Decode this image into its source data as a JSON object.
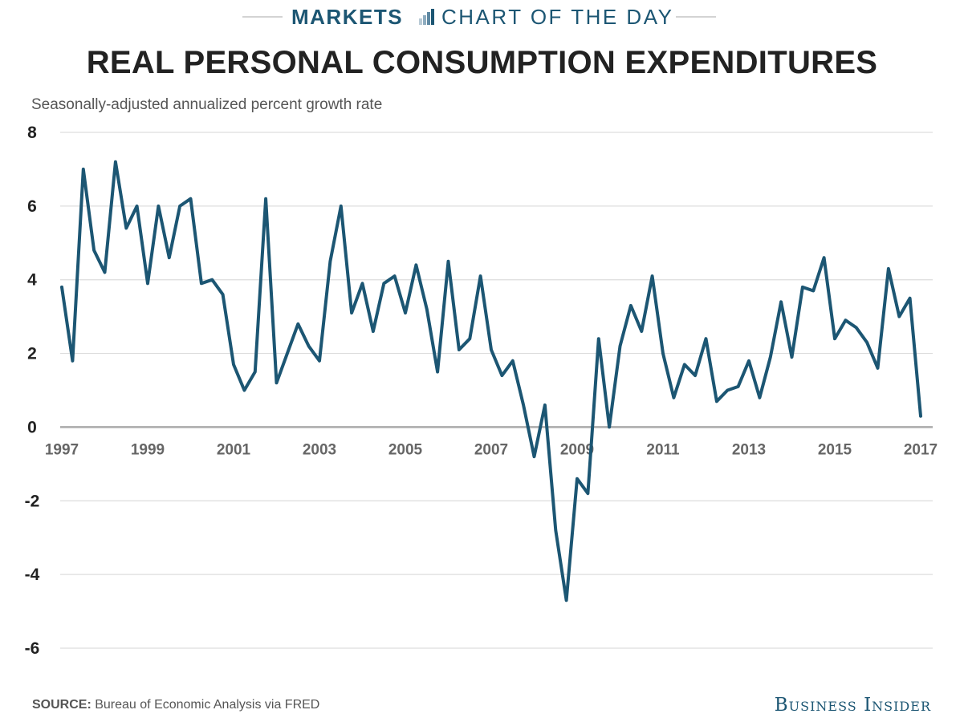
{
  "banner": {
    "brand": "MARKETS",
    "section": "CHART OF THE DAY",
    "icon": "bar-chart-icon",
    "color": "#1c5673"
  },
  "source": {
    "label": "SOURCE:",
    "text": "Bureau of Economic Analysis via FRED"
  },
  "logo": {
    "text": "Business Insider"
  },
  "chart_data": {
    "type": "line",
    "title": "REAL PERSONAL CONSUMPTION EXPENDITURES",
    "subtitle": "Seasonally-adjusted annualized percent growth rate",
    "xlabel": "",
    "ylabel": "",
    "ylim": [
      -6,
      8
    ],
    "xlim": [
      1997,
      2017
    ],
    "y_ticks": [
      8,
      6,
      4,
      2,
      0,
      -2,
      -4,
      -6
    ],
    "x_ticks": [
      "1997",
      "1999",
      "2001",
      "2003",
      "2005",
      "2007",
      "2009",
      "2011",
      "2013",
      "2015",
      "2017"
    ],
    "grid": true,
    "line_color": "#1c5673",
    "series": [
      {
        "x": [
          1997.0,
          1997.25,
          1997.5,
          1997.75,
          1998.0,
          1998.25,
          1998.5,
          1998.75,
          1999.0,
          1999.25,
          1999.5,
          1999.75,
          2000.0,
          2000.25,
          2000.5,
          2000.75,
          2001.0,
          2001.25,
          2001.5,
          2001.75,
          2002.0,
          2002.25,
          2002.5,
          2002.75,
          2003.0,
          2003.25,
          2003.5,
          2003.75,
          2004.0,
          2004.25,
          2004.5,
          2004.75,
          2005.0,
          2005.25,
          2005.5,
          2005.75,
          2006.0,
          2006.25,
          2006.5,
          2006.75,
          2007.0,
          2007.25,
          2007.5,
          2007.75,
          2008.0,
          2008.25,
          2008.5,
          2008.75,
          2009.0,
          2009.25,
          2009.5,
          2009.75,
          2010.0,
          2010.25,
          2010.5,
          2010.75,
          2011.0,
          2011.25,
          2011.5,
          2011.75,
          2012.0,
          2012.25,
          2012.5,
          2012.75,
          2013.0,
          2013.25,
          2013.5,
          2013.75,
          2014.0,
          2014.25,
          2014.5,
          2014.75,
          2015.0,
          2015.25,
          2015.5,
          2015.75,
          2016.0,
          2016.25,
          2016.5,
          2016.75,
          2017.0
        ],
        "values": [
          3.8,
          1.8,
          7.0,
          4.8,
          4.2,
          7.2,
          5.4,
          6.0,
          3.9,
          6.0,
          4.6,
          6.0,
          6.2,
          3.9,
          4.0,
          3.6,
          1.7,
          1.0,
          1.5,
          6.2,
          1.2,
          2.0,
          2.8,
          2.2,
          1.8,
          4.5,
          6.0,
          3.1,
          3.9,
          2.6,
          3.9,
          4.1,
          3.1,
          4.4,
          3.2,
          1.5,
          4.5,
          2.1,
          2.4,
          4.1,
          2.1,
          1.4,
          1.8,
          0.6,
          -0.8,
          0.6,
          -2.8,
          -4.7,
          -1.4,
          -1.8,
          2.4,
          0.0,
          2.2,
          3.3,
          2.6,
          4.1,
          2.0,
          0.8,
          1.7,
          1.4,
          2.4,
          0.7,
          1.0,
          1.1,
          1.8,
          0.8,
          1.9,
          3.4,
          1.9,
          3.8,
          3.7,
          4.6,
          2.4,
          2.9,
          2.7,
          2.3,
          1.6,
          4.3,
          3.0,
          3.5,
          0.3
        ]
      }
    ]
  }
}
